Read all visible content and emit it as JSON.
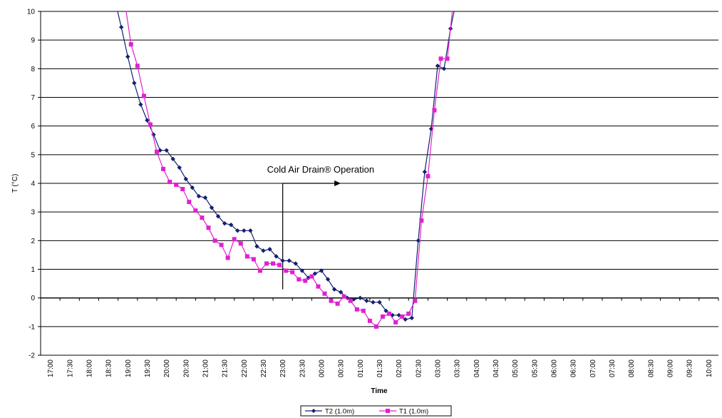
{
  "chart_data": {
    "type": "line",
    "title": "",
    "xlabel": "Time",
    "ylabel": "T (°C)",
    "ylim": [
      -2,
      10
    ],
    "yticks": [
      -2,
      -1,
      0,
      1,
      2,
      3,
      4,
      5,
      6,
      7,
      8,
      9,
      10
    ],
    "grid": "horizontal",
    "legend_position": "bottom",
    "categories": [
      "17:00",
      "17:30",
      "18:00",
      "18:30",
      "19:00",
      "19:30",
      "20:00",
      "20:30",
      "21:00",
      "21:30",
      "22:00",
      "22:30",
      "23:00",
      "23:30",
      "00:00",
      "00:30",
      "01:00",
      "01:30",
      "02:00",
      "02:30",
      "03:00",
      "03:30",
      "04:00",
      "04:30",
      "05:00",
      "05:30",
      "06:00",
      "06:30",
      "07:00",
      "07:30",
      "08:00",
      "08:30",
      "09:00",
      "09:30",
      "10:00"
    ],
    "annotation": {
      "text": "Cold Air Drain® Operation",
      "start_time": "23:00",
      "arrow_end_time": "00:30",
      "arrow_level": 4,
      "line_bottom": 0.3
    },
    "series": [
      {
        "name": "T2 (1.0m)",
        "color": "#14206e",
        "marker": "diamond",
        "points": [
          [
            "18:40",
            10.4
          ],
          [
            "18:50",
            9.45
          ],
          [
            "19:00",
            8.42
          ],
          [
            "19:10",
            7.5
          ],
          [
            "19:20",
            6.75
          ],
          [
            "19:30",
            6.2
          ],
          [
            "19:40",
            5.7
          ],
          [
            "19:50",
            5.15
          ],
          [
            "20:00",
            5.15
          ],
          [
            "20:10",
            4.85
          ],
          [
            "20:20",
            4.55
          ],
          [
            "20:30",
            4.15
          ],
          [
            "20:40",
            3.85
          ],
          [
            "20:50",
            3.55
          ],
          [
            "21:00",
            3.5
          ],
          [
            "21:10",
            3.15
          ],
          [
            "21:20",
            2.85
          ],
          [
            "21:30",
            2.6
          ],
          [
            "21:40",
            2.55
          ],
          [
            "21:50",
            2.35
          ],
          [
            "22:00",
            2.35
          ],
          [
            "22:10",
            2.35
          ],
          [
            "22:20",
            1.8
          ],
          [
            "22:30",
            1.65
          ],
          [
            "22:40",
            1.7
          ],
          [
            "22:50",
            1.45
          ],
          [
            "23:00",
            1.3
          ],
          [
            "23:10",
            1.3
          ],
          [
            "23:20",
            1.2
          ],
          [
            "23:30",
            0.95
          ],
          [
            "23:40",
            0.7
          ],
          [
            "23:50",
            0.85
          ],
          [
            "00:00",
            0.95
          ],
          [
            "00:10",
            0.65
          ],
          [
            "00:20",
            0.3
          ],
          [
            "00:30",
            0.2
          ],
          [
            "00:40",
            0.0
          ],
          [
            "00:50",
            -0.05
          ],
          [
            "01:00",
            0.0
          ],
          [
            "01:10",
            -0.1
          ],
          [
            "01:20",
            -0.15
          ],
          [
            "01:30",
            -0.15
          ],
          [
            "01:40",
            -0.45
          ],
          [
            "01:50",
            -0.6
          ],
          [
            "02:00",
            -0.6
          ],
          [
            "02:10",
            -0.75
          ],
          [
            "02:20",
            -0.7
          ],
          [
            "02:30",
            2.0
          ],
          [
            "02:40",
            4.4
          ],
          [
            "02:50",
            5.9
          ],
          [
            "03:00",
            8.1
          ],
          [
            "03:10",
            8.0
          ],
          [
            "03:20",
            9.4
          ],
          [
            "03:30",
            10.5
          ]
        ]
      },
      {
        "name": "T1 (1.0m)",
        "color": "#e020d0",
        "marker": "square",
        "points": [
          [
            "18:55",
            10.4
          ],
          [
            "19:05",
            8.85
          ],
          [
            "19:15",
            8.1
          ],
          [
            "19:25",
            7.05
          ],
          [
            "19:35",
            6.05
          ],
          [
            "19:45",
            5.1
          ],
          [
            "19:55",
            4.5
          ],
          [
            "20:05",
            4.05
          ],
          [
            "20:15",
            3.95
          ],
          [
            "20:25",
            3.8
          ],
          [
            "20:35",
            3.35
          ],
          [
            "20:45",
            3.05
          ],
          [
            "20:55",
            2.8
          ],
          [
            "21:05",
            2.45
          ],
          [
            "21:15",
            2.0
          ],
          [
            "21:25",
            1.85
          ],
          [
            "21:35",
            1.4
          ],
          [
            "21:45",
            2.05
          ],
          [
            "21:55",
            1.9
          ],
          [
            "22:05",
            1.45
          ],
          [
            "22:15",
            1.35
          ],
          [
            "22:25",
            0.95
          ],
          [
            "22:35",
            1.2
          ],
          [
            "22:45",
            1.2
          ],
          [
            "22:55",
            1.15
          ],
          [
            "23:05",
            0.95
          ],
          [
            "23:15",
            0.9
          ],
          [
            "23:25",
            0.65
          ],
          [
            "23:35",
            0.6
          ],
          [
            "23:45",
            0.75
          ],
          [
            "23:55",
            0.4
          ],
          [
            "00:05",
            0.15
          ],
          [
            "00:15",
            -0.1
          ],
          [
            "00:25",
            -0.2
          ],
          [
            "00:35",
            0.05
          ],
          [
            "00:45",
            -0.1
          ],
          [
            "00:55",
            -0.4
          ],
          [
            "01:05",
            -0.45
          ],
          [
            "01:15",
            -0.8
          ],
          [
            "01:25",
            -1.0
          ],
          [
            "01:35",
            -0.65
          ],
          [
            "01:45",
            -0.55
          ],
          [
            "01:55",
            -0.85
          ],
          [
            "02:05",
            -0.65
          ],
          [
            "02:15",
            -0.55
          ],
          [
            "02:25",
            -0.1
          ],
          [
            "02:35",
            2.7
          ],
          [
            "02:45",
            4.25
          ],
          [
            "02:55",
            6.55
          ],
          [
            "03:05",
            8.35
          ],
          [
            "03:15",
            8.35
          ],
          [
            "03:25",
            10.5
          ]
        ]
      }
    ]
  }
}
